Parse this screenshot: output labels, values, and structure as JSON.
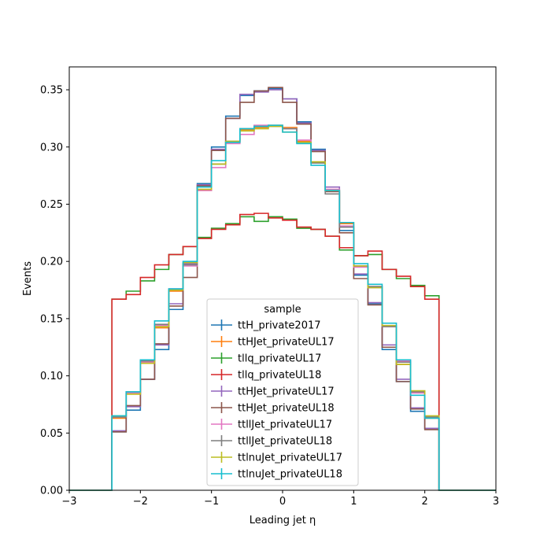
{
  "chart_data": {
    "type": "line",
    "drawstyle": "steps",
    "title": "",
    "xlabel": "Leading jet  η",
    "ylabel": "Events",
    "xlim": [
      -3,
      3
    ],
    "ylim": [
      0,
      0.37
    ],
    "x_ticks": [
      -3,
      -2,
      -1,
      0,
      1,
      2,
      3
    ],
    "x_tick_labels": [
      "−3",
      "−2",
      "−1",
      "0",
      "1",
      "2",
      "3"
    ],
    "y_ticks": [
      0.0,
      0.05,
      0.1,
      0.15,
      0.2,
      0.25,
      0.3,
      0.35
    ],
    "y_tick_labels": [
      "0.00",
      "0.05",
      "0.10",
      "0.15",
      "0.20",
      "0.25",
      "0.30",
      "0.35"
    ],
    "grid": false,
    "legend": {
      "title": "sample",
      "placement": "lower center"
    },
    "bin_edges": [
      -2.4,
      -2.2,
      -2.0,
      -1.8,
      -1.6,
      -1.4,
      -1.2,
      -1.0,
      -0.8,
      -0.6,
      -0.4,
      -0.2,
      0.0,
      0.2,
      0.4,
      0.6,
      0.8,
      1.0,
      1.2,
      1.4,
      1.6,
      1.8,
      2.0,
      2.2,
      2.4
    ],
    "series": [
      {
        "name": "ttH_private2017",
        "color": "#1f77b4",
        "values": [
          0.051,
          0.07,
          0.097,
          0.123,
          0.158,
          0.198,
          0.268,
          0.3,
          0.327,
          0.345,
          0.349,
          0.351,
          0.342,
          0.322,
          0.298,
          0.262,
          0.227,
          0.188,
          0.163,
          0.123,
          0.095,
          0.069,
          0.054,
          0.0
        ]
      },
      {
        "name": "ttHJet_privateUL17",
        "color": "#ff7f0e",
        "values": [
          0.063,
          0.084,
          0.111,
          0.142,
          0.174,
          0.198,
          0.262,
          0.285,
          0.304,
          0.315,
          0.317,
          0.319,
          0.317,
          0.305,
          0.287,
          0.262,
          0.233,
          0.196,
          0.178,
          0.143,
          0.11,
          0.086,
          0.063,
          0.0
        ]
      },
      {
        "name": "tllq_privateUL17",
        "color": "#2ca02c",
        "values": [
          0.167,
          0.174,
          0.183,
          0.193,
          0.206,
          0.213,
          0.221,
          0.229,
          0.233,
          0.239,
          0.235,
          0.239,
          0.237,
          0.229,
          0.228,
          0.222,
          0.21,
          0.205,
          0.206,
          0.193,
          0.185,
          0.179,
          0.17,
          0.0
        ]
      },
      {
        "name": "tllq_privateUL18",
        "color": "#d62728",
        "values": [
          0.167,
          0.171,
          0.186,
          0.197,
          0.206,
          0.213,
          0.22,
          0.228,
          0.232,
          0.241,
          0.242,
          0.238,
          0.236,
          0.23,
          0.228,
          0.222,
          0.212,
          0.205,
          0.209,
          0.193,
          0.187,
          0.178,
          0.167,
          0.0
        ]
      },
      {
        "name": "ttHJet_privateUL17",
        "color": "#9467bd",
        "values": [
          0.052,
          0.073,
          0.097,
          0.127,
          0.163,
          0.198,
          0.267,
          0.298,
          0.325,
          0.346,
          0.348,
          0.35,
          0.342,
          0.321,
          0.297,
          0.265,
          0.23,
          0.189,
          0.164,
          0.127,
          0.097,
          0.072,
          0.054,
          0.0
        ]
      },
      {
        "name": "ttHJet_privateUL18",
        "color": "#8c564b",
        "values": [
          0.051,
          0.074,
          0.097,
          0.128,
          0.161,
          0.186,
          0.266,
          0.297,
          0.325,
          0.339,
          0.349,
          0.352,
          0.339,
          0.32,
          0.296,
          0.261,
          0.225,
          0.185,
          0.162,
          0.125,
          0.095,
          0.071,
          0.053,
          0.0
        ]
      },
      {
        "name": "ttllJet_privateUL17",
        "color": "#e377c2",
        "values": [
          0.064,
          0.085,
          0.112,
          0.144,
          0.176,
          0.196,
          0.262,
          0.282,
          0.303,
          0.311,
          0.319,
          0.318,
          0.316,
          0.306,
          0.286,
          0.263,
          0.231,
          0.195,
          0.177,
          0.143,
          0.113,
          0.085,
          0.064,
          0.0
        ]
      },
      {
        "name": "ttllJet_privateUL18",
        "color": "#7f7f7f",
        "values": [
          0.064,
          0.086,
          0.113,
          0.145,
          0.175,
          0.197,
          0.265,
          0.285,
          0.305,
          0.316,
          0.318,
          0.318,
          0.316,
          0.304,
          0.286,
          0.259,
          0.23,
          0.196,
          0.178,
          0.143,
          0.112,
          0.086,
          0.064,
          0.0
        ]
      },
      {
        "name": "ttlnuJet_privateUL17",
        "color": "#bcbd22",
        "values": [
          0.065,
          0.084,
          0.111,
          0.143,
          0.175,
          0.199,
          0.263,
          0.285,
          0.305,
          0.314,
          0.316,
          0.318,
          0.313,
          0.304,
          0.287,
          0.262,
          0.234,
          0.196,
          0.177,
          0.144,
          0.11,
          0.087,
          0.065,
          0.0
        ]
      },
      {
        "name": "ttlnuJet_privateUL18",
        "color": "#17becf",
        "values": [
          0.065,
          0.086,
          0.114,
          0.148,
          0.176,
          0.2,
          0.265,
          0.288,
          0.304,
          0.316,
          0.318,
          0.319,
          0.313,
          0.303,
          0.284,
          0.262,
          0.234,
          0.198,
          0.18,
          0.146,
          0.114,
          0.083,
          0.063,
          0.0
        ]
      }
    ]
  }
}
